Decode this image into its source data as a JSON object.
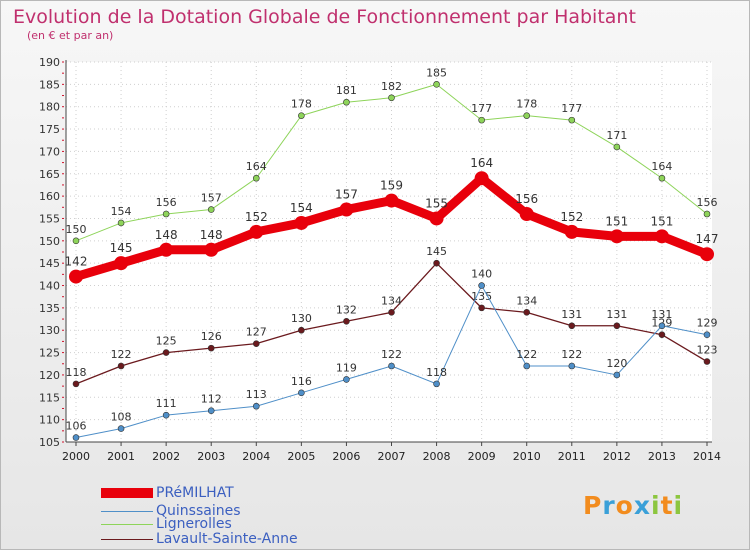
{
  "title": "Evolution de la Dotation Globale de Fonctionnement par Habitant",
  "subtitle": "(en € et par an)",
  "logo": {
    "letters": [
      "P",
      "r",
      "o",
      "x",
      "i",
      "t",
      "i"
    ],
    "colors": [
      "#f28c1e",
      "#3aa0d8",
      "#f28c1e",
      "#3aa0d8",
      "#8cc63f",
      "#f28c1e",
      "#8cc63f"
    ]
  },
  "chart_data": {
    "type": "line",
    "categories": [
      "2000",
      "2001",
      "2002",
      "2003",
      "2004",
      "2005",
      "2006",
      "2007",
      "2008",
      "2009",
      "2010",
      "2011",
      "2012",
      "2013",
      "2014"
    ],
    "ylim": [
      105,
      190
    ],
    "yticks": [
      105,
      110,
      115,
      120,
      125,
      130,
      135,
      140,
      145,
      150,
      155,
      160,
      165,
      170,
      175,
      180,
      185,
      190
    ],
    "grid": true,
    "legend_position": "bottom-left",
    "series": [
      {
        "name": "PRéMILHAT",
        "color": "#e8000b",
        "values": [
          142,
          145,
          148,
          148,
          152,
          154,
          157,
          159,
          155,
          164,
          156,
          152,
          151,
          151,
          147
        ]
      },
      {
        "name": "Quinssaines",
        "color": "#4f8fc8",
        "values": [
          106,
          108,
          111,
          112,
          113,
          116,
          119,
          122,
          118,
          140,
          122,
          122,
          120,
          131,
          129
        ]
      },
      {
        "name": "Lignerolles",
        "color": "#8ed45a",
        "values": [
          150,
          154,
          156,
          157,
          164,
          178,
          181,
          182,
          185,
          177,
          178,
          177,
          171,
          164,
          156
        ]
      },
      {
        "name": "Lavault-Sainte-Anne",
        "color": "#6b1a1e",
        "values": [
          118,
          122,
          125,
          126,
          127,
          130,
          132,
          134,
          145,
          135,
          134,
          131,
          131,
          129,
          123
        ]
      }
    ]
  }
}
